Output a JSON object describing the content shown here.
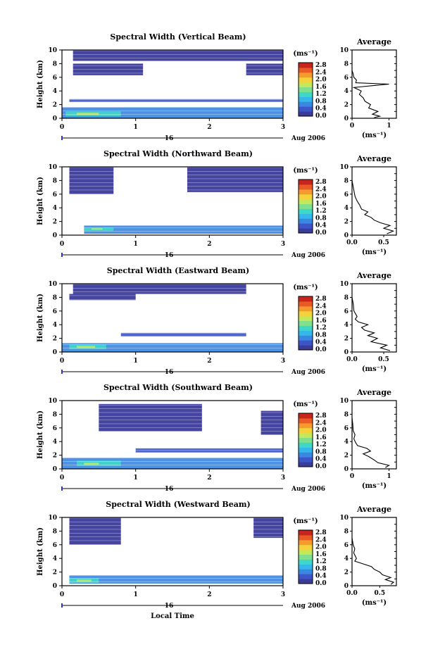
{
  "palette": [
    "#3b3b9a",
    "#3c55c8",
    "#3a86e0",
    "#36b7ea",
    "#3fd8c8",
    "#7fe08f",
    "#c4e85a",
    "#f3d23c",
    "#f49a2e",
    "#ea5a24",
    "#c8241e"
  ],
  "chart_data": [
    {
      "type": "heatmap",
      "title": "Spectral Width (Vertical Beam)",
      "xlabel": "",
      "ylabel": "Height (km)",
      "xlim": [
        0,
        3
      ],
      "ylim": [
        0,
        10
      ],
      "xticks": [
        "0",
        "1",
        "2",
        "3"
      ],
      "yticks": [
        "0",
        "2",
        "4",
        "6",
        "8",
        "10"
      ],
      "date_label": "16",
      "date_tail": "Aug 2006",
      "colorbar": {
        "unit": "(ms⁻¹)",
        "ticks": [
          "0.0",
          "0.4",
          "0.8",
          "1.2",
          "1.6",
          "2.0",
          "2.4",
          "2.8"
        ]
      },
      "avg": {
        "title": "Average",
        "xlabel": "(ms⁻¹)",
        "xlim": [
          0,
          1.2
        ],
        "xticks": [
          "0",
          "1"
        ],
        "xtick_vals": [
          0,
          1
        ],
        "yticks": [
          "0",
          "2",
          "4",
          "6",
          "8",
          "10"
        ],
        "profile": [
          [
            0.6,
            0.1
          ],
          [
            0.75,
            0.3
          ],
          [
            0.55,
            0.6
          ],
          [
            0.7,
            1.0
          ],
          [
            0.45,
            1.5
          ],
          [
            0.5,
            2.0
          ],
          [
            0.35,
            2.5
          ],
          [
            0.3,
            3.0
          ],
          [
            0.2,
            3.5
          ],
          [
            0.25,
            4.0
          ],
          [
            0.05,
            4.5
          ],
          [
            0.6,
            4.8
          ],
          [
            1.0,
            5.0
          ],
          [
            0.1,
            5.2
          ],
          [
            0.12,
            5.6
          ],
          [
            0.05,
            6.0
          ],
          [
            0.03,
            6.5
          ],
          [
            0.0,
            7.0
          ]
        ]
      }
    },
    {
      "type": "heatmap",
      "title": "Spectral Width (Northward Beam)",
      "xlabel": "",
      "ylabel": "Height (km)",
      "xlim": [
        0,
        3
      ],
      "ylim": [
        0,
        10
      ],
      "xticks": [
        "0",
        "1",
        "2",
        "3"
      ],
      "yticks": [
        "0",
        "2",
        "4",
        "6",
        "8",
        "10"
      ],
      "date_label": "16",
      "date_tail": "Aug 2006",
      "colorbar": {
        "unit": "(ms⁻¹)",
        "ticks": [
          "0.0",
          "0.4",
          "0.8",
          "1.2",
          "1.6",
          "2.0",
          "2.4",
          "2.8"
        ]
      },
      "avg": {
        "title": "Average",
        "xlabel": "(ms⁻¹)",
        "xlim": [
          0,
          0.7
        ],
        "xticks": [
          "0.0",
          "0.5"
        ],
        "xtick_vals": [
          0,
          0.5
        ],
        "yticks": [
          "0",
          "2",
          "4",
          "6",
          "8",
          "10"
        ],
        "profile": [
          [
            0.55,
            0.2
          ],
          [
            0.65,
            0.6
          ],
          [
            0.5,
            1.0
          ],
          [
            0.6,
            1.4
          ],
          [
            0.45,
            1.8
          ],
          [
            0.35,
            2.2
          ],
          [
            0.3,
            2.6
          ],
          [
            0.2,
            3.0
          ],
          [
            0.25,
            3.4
          ],
          [
            0.15,
            3.8
          ],
          [
            0.12,
            4.4
          ],
          [
            0.08,
            5.0
          ],
          [
            0.05,
            5.6
          ],
          [
            0.04,
            6.0
          ],
          [
            0.02,
            7.0
          ],
          [
            0.0,
            8.0
          ]
        ]
      }
    },
    {
      "type": "heatmap",
      "title": "Spectral Width (Eastward Beam)",
      "xlabel": "",
      "ylabel": "Height (km)",
      "xlim": [
        0,
        3
      ],
      "ylim": [
        0,
        10
      ],
      "xticks": [
        "0",
        "1",
        "2",
        "3"
      ],
      "yticks": [
        "0",
        "2",
        "4",
        "6",
        "8",
        "10"
      ],
      "date_label": "16",
      "date_tail": "Aug 2006",
      "colorbar": {
        "unit": "(ms⁻¹)",
        "ticks": [
          "0.0",
          "0.4",
          "0.8",
          "1.2",
          "1.6",
          "2.0",
          "2.4",
          "2.8"
        ]
      },
      "avg": {
        "title": "Average",
        "xlabel": "(ms⁻¹)",
        "xlim": [
          0,
          0.7
        ],
        "xticks": [
          "0.0",
          "0.5"
        ],
        "xtick_vals": [
          0,
          0.5
        ],
        "yticks": [
          "0",
          "2",
          "4",
          "6",
          "8",
          "10"
        ],
        "profile": [
          [
            0.6,
            0.2
          ],
          [
            0.45,
            0.6
          ],
          [
            0.55,
            1.0
          ],
          [
            0.3,
            1.5
          ],
          [
            0.4,
            2.0
          ],
          [
            0.25,
            2.4
          ],
          [
            0.35,
            2.8
          ],
          [
            0.2,
            3.2
          ],
          [
            0.15,
            3.6
          ],
          [
            0.25,
            4.0
          ],
          [
            0.1,
            4.4
          ],
          [
            0.05,
            4.8
          ],
          [
            0.08,
            5.2
          ],
          [
            0.03,
            6.0
          ],
          [
            0.02,
            7.0
          ],
          [
            0.0,
            8.0
          ]
        ]
      }
    },
    {
      "type": "heatmap",
      "title": "Spectral Width (Southward Beam)",
      "xlabel": "",
      "ylabel": "Height (km)",
      "xlim": [
        0,
        3
      ],
      "ylim": [
        0,
        10
      ],
      "xticks": [
        "0",
        "1",
        "2",
        "3"
      ],
      "yticks": [
        "0",
        "2",
        "4",
        "6",
        "8",
        "10"
      ],
      "date_label": "16",
      "date_tail": "Aug 2006",
      "colorbar": {
        "unit": "(ms⁻¹)",
        "ticks": [
          "0.0",
          "0.4",
          "0.8",
          "1.2",
          "1.6",
          "2.0",
          "2.4",
          "2.8"
        ]
      },
      "avg": {
        "title": "Average",
        "xlabel": "(ms⁻¹)",
        "xlim": [
          0,
          1.2
        ],
        "xticks": [
          "0",
          "1"
        ],
        "xtick_vals": [
          0,
          1
        ],
        "yticks": [
          "0",
          "2",
          "4",
          "6",
          "8",
          "10"
        ],
        "profile": [
          [
            0.9,
            0.2
          ],
          [
            1.0,
            0.5
          ],
          [
            0.7,
            0.9
          ],
          [
            0.6,
            1.3
          ],
          [
            0.45,
            1.8
          ],
          [
            0.3,
            2.2
          ],
          [
            0.5,
            2.6
          ],
          [
            0.4,
            3.0
          ],
          [
            0.15,
            3.4
          ],
          [
            0.1,
            3.8
          ],
          [
            0.05,
            4.4
          ],
          [
            0.08,
            5.0
          ],
          [
            0.03,
            5.6
          ],
          [
            0.02,
            6.5
          ],
          [
            0.0,
            7.5
          ]
        ]
      }
    },
    {
      "type": "heatmap",
      "title": "Spectral Width (Westward Beam)",
      "xlabel": "Local Time",
      "ylabel": "Height (km)",
      "xlim": [
        0,
        3
      ],
      "ylim": [
        0,
        10
      ],
      "xticks": [
        "0",
        "1",
        "2",
        "3"
      ],
      "yticks": [
        "0",
        "2",
        "4",
        "6",
        "8",
        "10"
      ],
      "date_label": "16",
      "date_tail": "Aug 2006",
      "colorbar": {
        "unit": "(ms⁻¹)",
        "ticks": [
          "0.0",
          "0.4",
          "0.8",
          "1.2",
          "1.6",
          "2.0",
          "2.4",
          "2.8"
        ]
      },
      "avg": {
        "title": "Average",
        "xlabel": "(ms⁻¹)",
        "xlim": [
          0,
          0.8
        ],
        "xticks": [
          "0.0",
          "0.5"
        ],
        "xtick_vals": [
          0,
          0.5
        ],
        "yticks": [
          "0",
          "2",
          "4",
          "6",
          "8",
          "10"
        ],
        "profile": [
          [
            0.7,
            0.2
          ],
          [
            0.75,
            0.5
          ],
          [
            0.6,
            0.9
          ],
          [
            0.7,
            1.2
          ],
          [
            0.55,
            1.6
          ],
          [
            0.5,
            2.0
          ],
          [
            0.4,
            2.4
          ],
          [
            0.35,
            2.8
          ],
          [
            0.2,
            3.2
          ],
          [
            0.05,
            3.6
          ],
          [
            0.08,
            4.0
          ],
          [
            0.03,
            4.8
          ],
          [
            0.05,
            5.4
          ],
          [
            0.02,
            6.0
          ],
          [
            0.0,
            7.0
          ]
        ]
      }
    }
  ]
}
